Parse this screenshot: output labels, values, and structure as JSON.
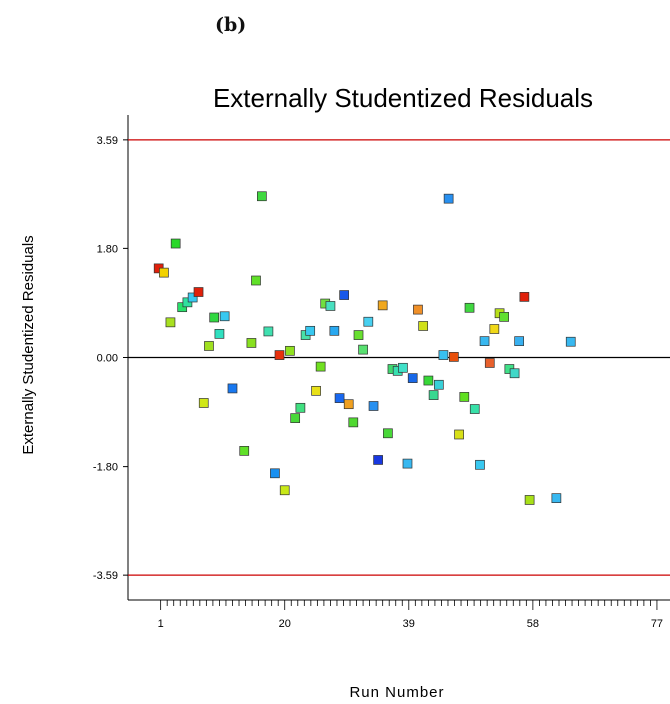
{
  "panel_label": "(b)",
  "chart_data": {
    "type": "scatter",
    "title": "Externally Studentized Residuals",
    "xlabel": "Run Number",
    "ylabel": "Externally Studentized Residuals",
    "xlim": [
      -4,
      79
    ],
    "ylim": [
      -4.0,
      4.0
    ],
    "x_ticks": [
      1,
      20,
      39,
      58,
      77
    ],
    "x_tick_labels": [
      "1",
      "20",
      "39",
      "58",
      "77"
    ],
    "y_ticks": [
      3.59,
      1.8,
      0.0,
      -1.8,
      -3.59
    ],
    "y_tick_labels": [
      "3.59",
      "1.80",
      "0.00",
      "-1.80",
      "-3.59"
    ],
    "reference_lines": [
      {
        "y": 3.59,
        "color": "#cc0000"
      },
      {
        "y": -3.59,
        "color": "#cc0000"
      },
      {
        "y": 0.0,
        "color": "#000000"
      }
    ],
    "points": [
      {
        "x": 0.7,
        "y": 1.47,
        "color": "#e0200a"
      },
      {
        "x": 1.5,
        "y": 1.4,
        "color": "#f2d200"
      },
      {
        "x": 2.5,
        "y": 0.58,
        "color": "#a8e020"
      },
      {
        "x": 3.3,
        "y": 1.88,
        "color": "#28d828"
      },
      {
        "x": 4.3,
        "y": 0.83,
        "color": "#28e06a"
      },
      {
        "x": 5.1,
        "y": 0.91,
        "color": "#30e0a0"
      },
      {
        "x": 5.9,
        "y": 0.99,
        "color": "#38c8f0"
      },
      {
        "x": 6.8,
        "y": 1.08,
        "color": "#e0200a"
      },
      {
        "x": 7.6,
        "y": -0.75,
        "color": "#d0e818"
      },
      {
        "x": 8.4,
        "y": 0.19,
        "color": "#a0e020"
      },
      {
        "x": 9.2,
        "y": 0.66,
        "color": "#30d840"
      },
      {
        "x": 10.0,
        "y": 0.39,
        "color": "#30e0c0"
      },
      {
        "x": 10.8,
        "y": 0.68,
        "color": "#38c8f0"
      },
      {
        "x": 12.0,
        "y": -0.51,
        "color": "#1878f0"
      },
      {
        "x": 13.8,
        "y": -1.54,
        "color": "#60e028"
      },
      {
        "x": 14.9,
        "y": 0.24,
        "color": "#88e020"
      },
      {
        "x": 15.6,
        "y": 1.27,
        "color": "#60e028"
      },
      {
        "x": 16.5,
        "y": 2.66,
        "color": "#40d840"
      },
      {
        "x": 17.5,
        "y": 0.43,
        "color": "#40e0b0"
      },
      {
        "x": 18.5,
        "y": -1.91,
        "color": "#1890f0"
      },
      {
        "x": 19.2,
        "y": 0.04,
        "color": "#e8300c"
      },
      {
        "x": 20.0,
        "y": -2.19,
        "color": "#c8e818"
      },
      {
        "x": 20.8,
        "y": 0.11,
        "color": "#90e020"
      },
      {
        "x": 21.6,
        "y": -1.0,
        "color": "#48d838"
      },
      {
        "x": 22.4,
        "y": -0.83,
        "color": "#40e080"
      },
      {
        "x": 23.2,
        "y": 0.37,
        "color": "#48e0a8"
      },
      {
        "x": 23.9,
        "y": 0.44,
        "color": "#38c8f0"
      },
      {
        "x": 24.8,
        "y": -0.55,
        "color": "#e8e018"
      },
      {
        "x": 25.5,
        "y": -0.15,
        "color": "#70e020"
      },
      {
        "x": 26.2,
        "y": 0.89,
        "color": "#70e040"
      },
      {
        "x": 27.0,
        "y": 0.85,
        "color": "#48e0c0"
      },
      {
        "x": 27.6,
        "y": 0.44,
        "color": "#28a8f0"
      },
      {
        "x": 28.4,
        "y": -0.67,
        "color": "#1868f0"
      },
      {
        "x": 29.1,
        "y": 1.03,
        "color": "#1858e8"
      },
      {
        "x": 29.8,
        "y": -0.77,
        "color": "#f0a020"
      },
      {
        "x": 30.5,
        "y": -1.07,
        "color": "#50d830"
      },
      {
        "x": 31.3,
        "y": 0.37,
        "color": "#68e030"
      },
      {
        "x": 32.0,
        "y": 0.13,
        "color": "#58e070"
      },
      {
        "x": 32.8,
        "y": 0.59,
        "color": "#48d0f0"
      },
      {
        "x": 33.6,
        "y": -0.8,
        "color": "#2890f0"
      },
      {
        "x": 34.3,
        "y": -1.69,
        "color": "#1838e0"
      },
      {
        "x": 35.0,
        "y": 0.86,
        "color": "#f0a820"
      },
      {
        "x": 35.8,
        "y": -1.25,
        "color": "#48d838"
      },
      {
        "x": 36.5,
        "y": -0.19,
        "color": "#40d870"
      },
      {
        "x": 37.3,
        "y": -0.22,
        "color": "#38e0b0"
      },
      {
        "x": 38.1,
        "y": -0.17,
        "color": "#40e0c8"
      },
      {
        "x": 38.8,
        "y": -1.75,
        "color": "#38b8f0"
      },
      {
        "x": 39.6,
        "y": -0.34,
        "color": "#1868e8"
      },
      {
        "x": 40.4,
        "y": 0.79,
        "color": "#f09028"
      },
      {
        "x": 41.2,
        "y": 0.52,
        "color": "#d0e018"
      },
      {
        "x": 42.0,
        "y": -0.38,
        "color": "#38d838"
      },
      {
        "x": 42.8,
        "y": -0.62,
        "color": "#38d890"
      },
      {
        "x": 43.6,
        "y": -0.45,
        "color": "#38d0d8"
      },
      {
        "x": 44.3,
        "y": 0.04,
        "color": "#38c0f0"
      },
      {
        "x": 45.1,
        "y": 2.62,
        "color": "#2890f0"
      },
      {
        "x": 45.9,
        "y": 0.01,
        "color": "#e8500c"
      },
      {
        "x": 46.7,
        "y": -1.27,
        "color": "#d8e018"
      },
      {
        "x": 47.5,
        "y": -0.65,
        "color": "#60e020"
      },
      {
        "x": 48.3,
        "y": 0.82,
        "color": "#40d840"
      },
      {
        "x": 49.1,
        "y": -0.85,
        "color": "#38e0a8"
      },
      {
        "x": 49.9,
        "y": -1.77,
        "color": "#38c8f0"
      },
      {
        "x": 50.6,
        "y": 0.27,
        "color": "#38b8f0"
      },
      {
        "x": 51.4,
        "y": -0.09,
        "color": "#e8602c"
      },
      {
        "x": 52.1,
        "y": 0.47,
        "color": "#f0d818"
      },
      {
        "x": 52.9,
        "y": 0.73,
        "color": "#b8e018"
      },
      {
        "x": 53.6,
        "y": 0.67,
        "color": "#60e030"
      },
      {
        "x": 54.4,
        "y": -0.19,
        "color": "#40e088"
      },
      {
        "x": 55.2,
        "y": -0.26,
        "color": "#40d8c8"
      },
      {
        "x": 55.9,
        "y": 0.27,
        "color": "#38b0f0"
      },
      {
        "x": 56.7,
        "y": 1.0,
        "color": "#e0200a"
      },
      {
        "x": 57.5,
        "y": -2.35,
        "color": "#a8e018"
      },
      {
        "x": 61.6,
        "y": -2.32,
        "color": "#38b8f0"
      },
      {
        "x": 63.8,
        "y": 0.26,
        "color": "#38b8f0"
      }
    ]
  }
}
